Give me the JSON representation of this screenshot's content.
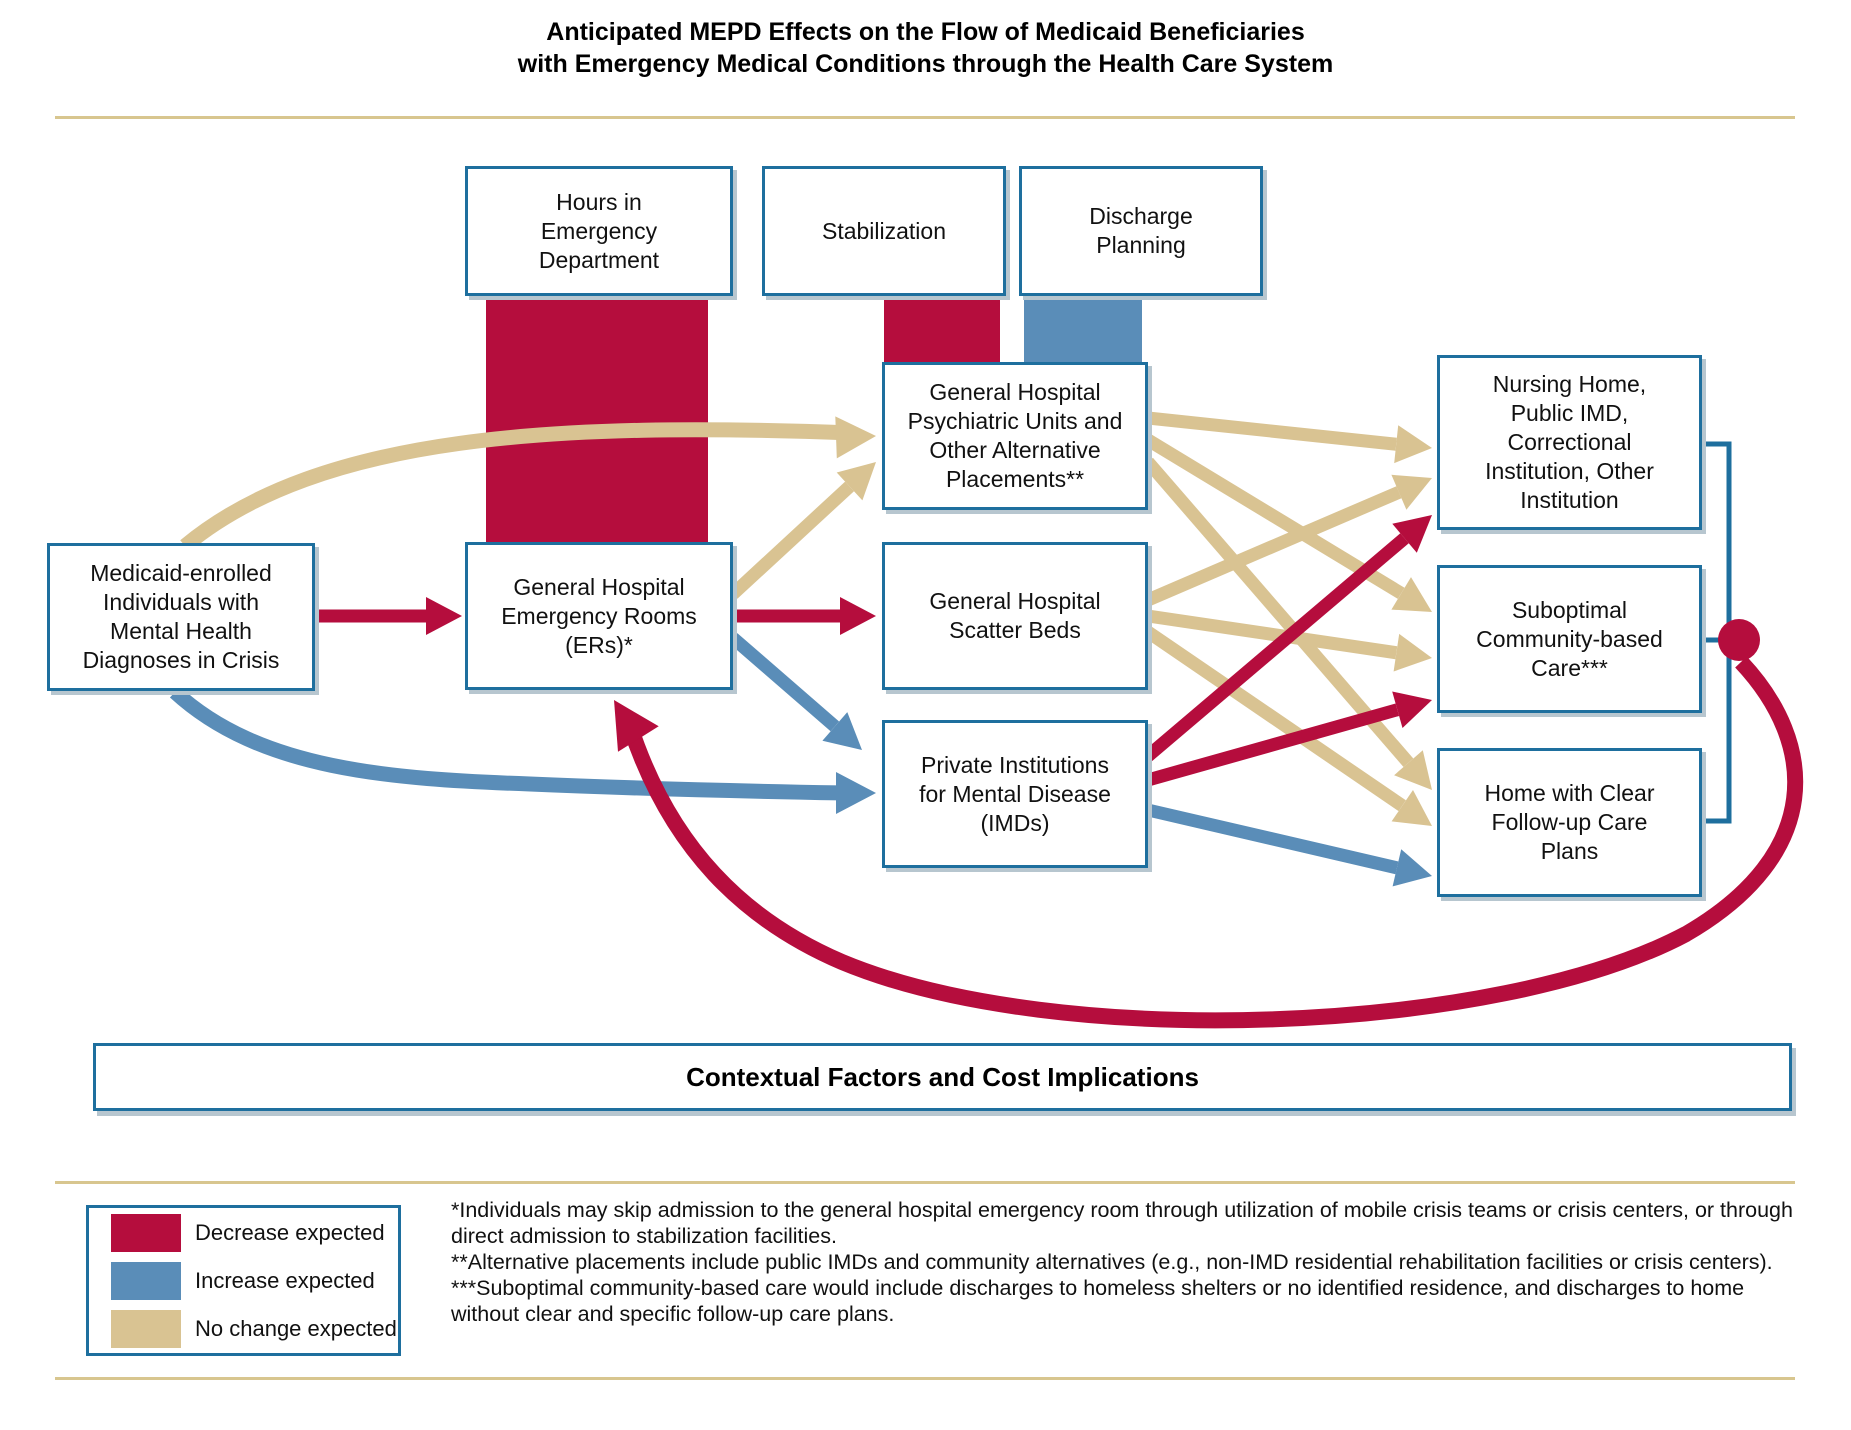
{
  "title": {
    "line1": "Anticipated MEPD Effects on the Flow of Medicaid Beneficiaries",
    "line2": "with Emergency Medical Conditions through the Health Care System"
  },
  "colors": {
    "decrease": "#b50d3d",
    "increase": "#5a8db8",
    "no_change": "#d9c392",
    "box_border": "#1e6f9e",
    "rule_gold": "#d8c68f"
  },
  "processes": [
    {
      "label": "Hours in Emergency Department",
      "effect": "decrease"
    },
    {
      "label": "Stabilization",
      "effect": "decrease"
    },
    {
      "label": "Discharge Planning",
      "effect": "increase"
    }
  ],
  "nodes": {
    "individuals": {
      "label": "Medicaid-enrolled Individuals with Mental Health Diagnoses in Crisis"
    },
    "er": {
      "label": "General Hospital Emergency Rooms (ERs)*"
    },
    "psych_units": {
      "label": "General Hospital Psychiatric Units and Other Alternative Placements**"
    },
    "scatter_beds": {
      "label": "General Hospital Scatter Beds"
    },
    "imds": {
      "label": "Private Institutions for Mental Disease (IMDs)"
    },
    "nursing_home": {
      "label": "Nursing Home, Public IMD, Correctional Institution, Other Institution"
    },
    "suboptimal_care": {
      "label": "Suboptimal Community-based Care***"
    },
    "home_plans": {
      "label": "Home with Clear Follow-up Care Plans"
    }
  },
  "edges": [
    {
      "from": "individuals",
      "to": "er",
      "effect": "decrease"
    },
    {
      "from": "individuals",
      "to": "psych_units",
      "effect": "no_change"
    },
    {
      "from": "individuals",
      "to": "imds",
      "effect": "increase"
    },
    {
      "from": "er",
      "to": "psych_units",
      "effect": "no_change"
    },
    {
      "from": "er",
      "to": "scatter_beds",
      "effect": "decrease"
    },
    {
      "from": "er",
      "to": "imds",
      "effect": "increase"
    },
    {
      "from": "psych_units",
      "to": "nursing_home",
      "effect": "no_change"
    },
    {
      "from": "psych_units",
      "to": "suboptimal_care",
      "effect": "no_change"
    },
    {
      "from": "psych_units",
      "to": "home_plans",
      "effect": "no_change"
    },
    {
      "from": "scatter_beds",
      "to": "nursing_home",
      "effect": "no_change"
    },
    {
      "from": "scatter_beds",
      "to": "suboptimal_care",
      "effect": "no_change"
    },
    {
      "from": "scatter_beds",
      "to": "home_plans",
      "effect": "no_change"
    },
    {
      "from": "imds",
      "to": "nursing_home",
      "effect": "decrease"
    },
    {
      "from": "imds",
      "to": "suboptimal_care",
      "effect": "decrease"
    },
    {
      "from": "imds",
      "to": "home_plans",
      "effect": "increase"
    },
    {
      "from": "suboptimal_care",
      "to": "er",
      "effect": "decrease"
    }
  ],
  "banner": {
    "label": "Contextual Factors and Cost Implications"
  },
  "legend": {
    "items": [
      {
        "key": "decrease",
        "label": "Decrease expected"
      },
      {
        "key": "increase",
        "label": "Increase expected"
      },
      {
        "key": "no_change",
        "label": "No change expected"
      }
    ]
  },
  "footnotes": [
    "*Individuals may skip admission to the general hospital emergency room through utilization of mobile crisis teams or crisis centers, or through direct admission to stabilization facilities.",
    "**Alternative placements include public IMDs and community alternatives (e.g., non-IMD residential rehabilitation facilities or crisis centers).",
    "***Suboptimal community-based care would include discharges to homeless shelters or no identified residence, and discharges to home without clear and specific follow-up care plans."
  ]
}
